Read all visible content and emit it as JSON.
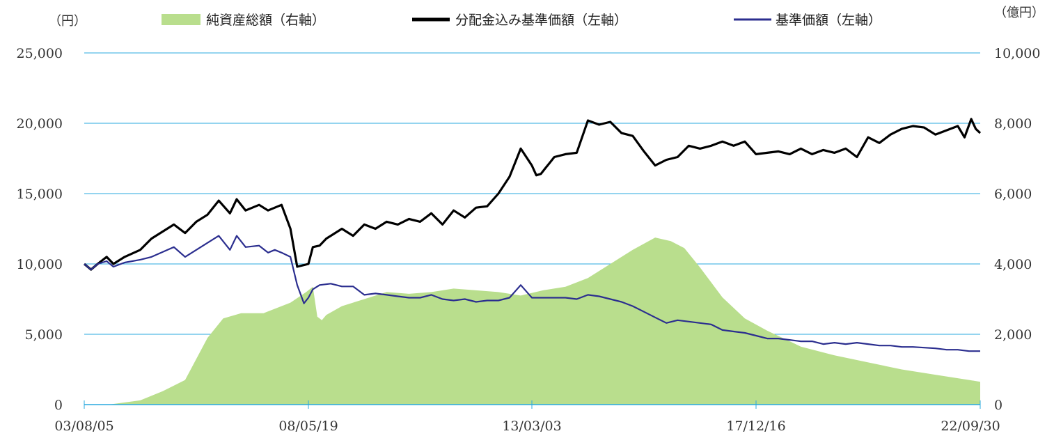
{
  "chart_data": {
    "type": "line",
    "left_axis": {
      "unit": "（円）",
      "ticks": [
        "0",
        "5,000",
        "10,000",
        "15,000",
        "20,000",
        "25,000"
      ],
      "ylim": [
        0,
        25000
      ]
    },
    "right_axis": {
      "unit": "（億円）",
      "ticks": [
        "0",
        "2,000",
        "4,000",
        "6,000",
        "8,000",
        "10,000"
      ],
      "ylim": [
        0,
        10000
      ]
    },
    "x_ticks": [
      "03/08/05",
      "08/05/19",
      "13/03/03",
      "17/12/16",
      "22/09/30"
    ],
    "x_tick_positions": [
      0,
      1,
      2,
      3,
      4
    ],
    "grid": true,
    "legend_position": "top",
    "series": [
      {
        "name": "純資産総額（右軸）",
        "kind": "area",
        "axis": "right",
        "color": "#b9de8d",
        "x": [
          0,
          0.12,
          0.25,
          0.35,
          0.45,
          0.55,
          0.62,
          0.7,
          0.8,
          0.92,
          0.99,
          1.02,
          1.04,
          1.06,
          1.08,
          1.15,
          1.25,
          1.35,
          1.45,
          1.55,
          1.65,
          1.75,
          1.85,
          1.95,
          2.05,
          2.15,
          2.25,
          2.35,
          2.45,
          2.55,
          2.62,
          2.68,
          2.75,
          2.85,
          2.95,
          3.05,
          3.2,
          3.35,
          3.5,
          3.65,
          3.8,
          3.95,
          4.0
        ],
        "values": [
          0,
          10,
          120,
          380,
          700,
          1900,
          2450,
          2600,
          2600,
          2900,
          3200,
          3350,
          2500,
          2400,
          2550,
          2800,
          3000,
          3200,
          3150,
          3200,
          3300,
          3250,
          3200,
          3100,
          3250,
          3350,
          3600,
          4000,
          4400,
          4750,
          4650,
          4450,
          3900,
          3050,
          2450,
          2100,
          1650,
          1400,
          1200,
          1000,
          850,
          700,
          650
        ]
      },
      {
        "name": "分配金込み基準価額（左軸）",
        "kind": "line",
        "axis": "left",
        "color": "#000000",
        "x": [
          0,
          0.03,
          0.06,
          0.1,
          0.13,
          0.18,
          0.25,
          0.3,
          0.4,
          0.45,
          0.5,
          0.55,
          0.6,
          0.65,
          0.68,
          0.72,
          0.78,
          0.82,
          0.85,
          0.88,
          0.92,
          0.95,
          1.0,
          1.02,
          1.05,
          1.08,
          1.1,
          1.15,
          1.2,
          1.25,
          1.3,
          1.35,
          1.4,
          1.45,
          1.5,
          1.55,
          1.6,
          1.65,
          1.7,
          1.75,
          1.8,
          1.85,
          1.9,
          1.95,
          2.0,
          2.02,
          2.04,
          2.06,
          2.08,
          2.1,
          2.15,
          2.2,
          2.25,
          2.3,
          2.35,
          2.4,
          2.45,
          2.5,
          2.55,
          2.6,
          2.65,
          2.7,
          2.75,
          2.8,
          2.85,
          2.9,
          2.95,
          3.0,
          3.05,
          3.1,
          3.15,
          3.2,
          3.25,
          3.3,
          3.35,
          3.4,
          3.45,
          3.5,
          3.55,
          3.6,
          3.65,
          3.7,
          3.75,
          3.8,
          3.85,
          3.9,
          3.93,
          3.96,
          3.98,
          4.0
        ],
        "values": [
          10000,
          9600,
          10000,
          10500,
          10000,
          10500,
          11000,
          11800,
          12800,
          12200,
          13000,
          13500,
          14500,
          13600,
          14600,
          13800,
          14200,
          13800,
          14000,
          14200,
          12500,
          9800,
          10000,
          11200,
          11300,
          11800,
          12000,
          12500,
          12000,
          12800,
          12500,
          13000,
          12800,
          13200,
          13000,
          13600,
          12800,
          13800,
          13300,
          14000,
          14100,
          15000,
          16200,
          18200,
          17000,
          16300,
          16400,
          16800,
          17200,
          17600,
          17800,
          17900,
          20200,
          19900,
          20100,
          19300,
          19100,
          18000,
          17000,
          17400,
          17600,
          18400,
          18200,
          18400,
          18700,
          18400,
          18700,
          17800,
          17900,
          18000,
          17800,
          18200,
          17800,
          18100,
          17900,
          18200,
          17600,
          19000,
          18600,
          19200,
          19600,
          19800,
          19700,
          19200,
          19500,
          19800,
          19000,
          20300,
          19600,
          19300
        ]
      },
      {
        "name": "基準価額（左軸）",
        "kind": "line",
        "axis": "left",
        "color": "#2b2e8f",
        "x": [
          0,
          0.03,
          0.06,
          0.1,
          0.13,
          0.18,
          0.25,
          0.3,
          0.4,
          0.45,
          0.5,
          0.55,
          0.6,
          0.65,
          0.68,
          0.72,
          0.78,
          0.82,
          0.85,
          0.88,
          0.92,
          0.95,
          0.98,
          1.0,
          1.02,
          1.05,
          1.1,
          1.15,
          1.2,
          1.25,
          1.3,
          1.35,
          1.4,
          1.45,
          1.5,
          1.55,
          1.6,
          1.65,
          1.7,
          1.75,
          1.8,
          1.85,
          1.9,
          1.95,
          2.0,
          2.05,
          2.1,
          2.15,
          2.2,
          2.25,
          2.3,
          2.35,
          2.4,
          2.45,
          2.5,
          2.55,
          2.6,
          2.65,
          2.7,
          2.75,
          2.8,
          2.85,
          2.9,
          2.95,
          3.0,
          3.05,
          3.1,
          3.15,
          3.2,
          3.25,
          3.3,
          3.35,
          3.4,
          3.45,
          3.5,
          3.55,
          3.6,
          3.65,
          3.7,
          3.75,
          3.8,
          3.85,
          3.9,
          3.95,
          4.0
        ],
        "values": [
          10000,
          9600,
          10000,
          10200,
          9800,
          10100,
          10300,
          10500,
          11200,
          10500,
          11000,
          11500,
          12000,
          11000,
          12000,
          11200,
          11300,
          10800,
          11000,
          10800,
          10500,
          8500,
          7200,
          7600,
          8200,
          8500,
          8600,
          8400,
          8400,
          7800,
          7900,
          7800,
          7700,
          7600,
          7600,
          7800,
          7500,
          7400,
          7500,
          7300,
          7400,
          7400,
          7600,
          8500,
          7600,
          7600,
          7600,
          7600,
          7500,
          7800,
          7700,
          7500,
          7300,
          7000,
          6600,
          6200,
          5800,
          6000,
          5900,
          5800,
          5700,
          5300,
          5200,
          5100,
          4900,
          4700,
          4700,
          4600,
          4500,
          4500,
          4300,
          4400,
          4300,
          4400,
          4300,
          4200,
          4200,
          4100,
          4100,
          4050,
          4000,
          3900,
          3900,
          3800,
          3800
        ]
      }
    ]
  }
}
